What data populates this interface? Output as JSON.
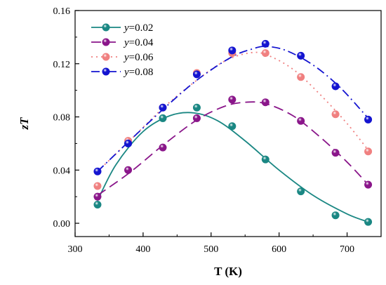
{
  "chart_data": {
    "type": "line",
    "xlabel": "T (K)",
    "ylabel": "zT",
    "xlim": [
      300,
      750
    ],
    "ylim": [
      -0.01,
      0.16
    ],
    "xticks": [
      300,
      400,
      500,
      600,
      700
    ],
    "yticks": [
      0.0,
      0.04,
      0.08,
      0.12,
      0.16
    ],
    "ytick_labels": [
      "0.00",
      "0.04",
      "0.08",
      "0.12",
      "0.16"
    ],
    "grid": false,
    "legend_position": "top-left",
    "series": [
      {
        "name": "y=0.02",
        "var": "y",
        "val": "=0.02",
        "color": "#1a8783",
        "dash": "solid",
        "x": [
          333,
          378,
          429,
          479,
          531,
          580,
          632,
          683,
          731
        ],
        "y": [
          0.014,
          0.06,
          0.079,
          0.087,
          0.073,
          0.048,
          0.024,
          0.006,
          0.001
        ],
        "fit": [
          [
            333,
            0.017
          ],
          [
            360,
            0.044
          ],
          [
            400,
            0.069
          ],
          [
            440,
            0.081
          ],
          [
            475,
            0.083
          ],
          [
            510,
            0.077
          ],
          [
            550,
            0.062
          ],
          [
            600,
            0.04
          ],
          [
            650,
            0.021
          ],
          [
            700,
            0.007
          ],
          [
            731,
            0.001
          ]
        ]
      },
      {
        "name": "y=0.04",
        "var": "y",
        "val": "=0.04",
        "color": "#8a168a",
        "dash": "longdash",
        "x": [
          333,
          378,
          429,
          479,
          531,
          580,
          632,
          683,
          731
        ],
        "y": [
          0.02,
          0.04,
          0.057,
          0.079,
          0.093,
          0.091,
          0.077,
          0.053,
          0.029
        ],
        "fit": [
          [
            333,
            0.021
          ],
          [
            380,
            0.038
          ],
          [
            430,
            0.059
          ],
          [
            480,
            0.078
          ],
          [
            520,
            0.088
          ],
          [
            550,
            0.091
          ],
          [
            580,
            0.09
          ],
          [
            620,
            0.081
          ],
          [
            660,
            0.065
          ],
          [
            700,
            0.046
          ],
          [
            731,
            0.029
          ]
        ]
      },
      {
        "name": "y=0.06",
        "var": "y",
        "val": "=0.06",
        "color": "#f08080",
        "dash": "dot",
        "x": [
          333,
          378,
          429,
          479,
          531,
          580,
          632,
          683,
          731
        ],
        "y": [
          0.028,
          0.062,
          0.087,
          0.113,
          0.128,
          0.128,
          0.11,
          0.082,
          0.054
        ],
        "fit": [
          [
            333,
            0.039
          ],
          [
            380,
            0.062
          ],
          [
            430,
            0.087
          ],
          [
            480,
            0.108
          ],
          [
            520,
            0.122
          ],
          [
            555,
            0.128
          ],
          [
            580,
            0.127
          ],
          [
            620,
            0.116
          ],
          [
            660,
            0.097
          ],
          [
            700,
            0.075
          ],
          [
            731,
            0.055
          ]
        ]
      },
      {
        "name": "y=0.08",
        "var": "y",
        "val": "=0.08",
        "color": "#1414d0",
        "dash": "dashdot",
        "x": [
          333,
          378,
          429,
          479,
          531,
          580,
          632,
          683,
          731
        ],
        "y": [
          0.039,
          0.06,
          0.087,
          0.112,
          0.13,
          0.135,
          0.126,
          0.103,
          0.078
        ],
        "fit": [
          [
            333,
            0.039
          ],
          [
            380,
            0.062
          ],
          [
            430,
            0.086
          ],
          [
            480,
            0.108
          ],
          [
            530,
            0.125
          ],
          [
            560,
            0.131
          ],
          [
            580,
            0.133
          ],
          [
            610,
            0.13
          ],
          [
            650,
            0.119
          ],
          [
            690,
            0.102
          ],
          [
            731,
            0.079
          ]
        ]
      }
    ]
  }
}
